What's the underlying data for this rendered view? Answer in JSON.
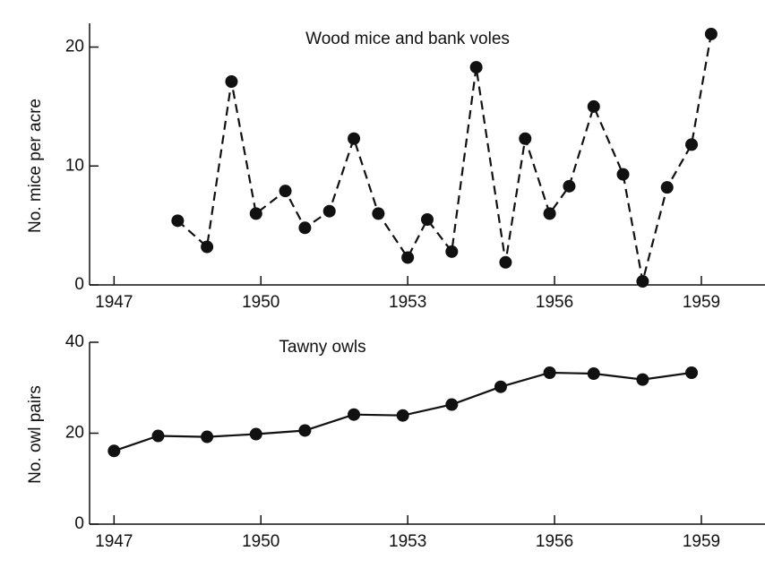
{
  "chart_data": [
    {
      "type": "line",
      "title": "Wood mice and bank voles",
      "y_label": "No. mice per acre",
      "x": [
        1948.3,
        1948.9,
        1949.4,
        1949.9,
        1950.5,
        1950.9,
        1951.4,
        1951.9,
        1952.4,
        1953.0,
        1953.4,
        1953.9,
        1954.4,
        1955.0,
        1955.4,
        1955.9,
        1956.3,
        1956.8,
        1957.4,
        1957.8,
        1958.3,
        1958.8,
        1959.2
      ],
      "series": [
        {
          "color": "#111111",
          "line_style": "dashed",
          "values": [
            5.4,
            3.2,
            17.1,
            6.0,
            7.9,
            4.8,
            6.2,
            12.3,
            6.0,
            2.3,
            5.5,
            2.8,
            18.3,
            1.9,
            12.3,
            6.0,
            8.3,
            15.0,
            9.3,
            0.3,
            8.2,
            11.8,
            21.1
          ]
        }
      ],
      "xlim": [
        1946.5,
        1960.3
      ],
      "xticks": [
        1947,
        1950,
        1953,
        1956,
        1959
      ],
      "ylim": [
        0,
        22
      ],
      "yticks": [
        0,
        10,
        20
      ]
    },
    {
      "type": "line",
      "title": "Tawny owls",
      "y_label": "No. owl pairs",
      "x": [
        1947.0,
        1947.9,
        1948.9,
        1949.9,
        1950.9,
        1951.9,
        1952.9,
        1953.9,
        1954.9,
        1955.9,
        1956.8,
        1957.8,
        1958.8
      ],
      "series": [
        {
          "color": "#111111",
          "line_style": "solid",
          "values": [
            16.1,
            19.4,
            19.2,
            19.8,
            20.6,
            24.1,
            23.9,
            26.3,
            30.2,
            33.3,
            33.1,
            31.8,
            33.3
          ]
        }
      ],
      "xlim": [
        1946.5,
        1960.3
      ],
      "xticks": [
        1947,
        1950,
        1953,
        1956,
        1959
      ],
      "ylim": [
        0,
        40
      ],
      "yticks": [
        0,
        20,
        40
      ]
    }
  ]
}
